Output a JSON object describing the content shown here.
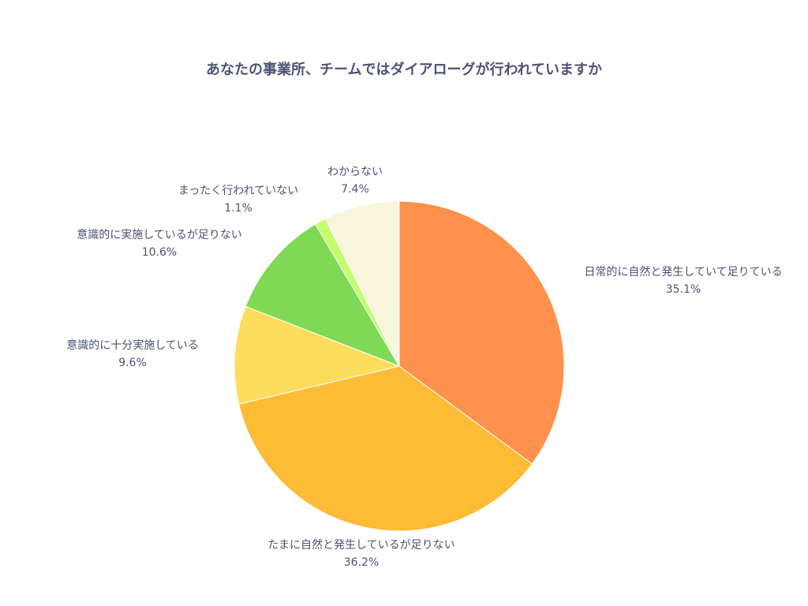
{
  "chart_data": {
    "type": "pie",
    "title": "あなたの事業所、チームではダイアローグが行われていますか",
    "start_angle_deg": 90,
    "direction": "clockwise",
    "slices": [
      {
        "label": "日常的に自然と発生していて足りている",
        "value": 35.1,
        "text": "35.1%",
        "color": "#fe914b"
      },
      {
        "label": "たまに自然と発生しているが足りない",
        "value": 36.2,
        "text": "36.2%",
        "color": "#fdbb36"
      },
      {
        "label": "意識的に十分実施している",
        "value": 9.6,
        "text": "9.6%",
        "color": "#fddd5b"
      },
      {
        "label": "意識的に実施しているが足りない",
        "value": 10.6,
        "text": "10.6%",
        "color": "#80d955"
      },
      {
        "label": "まったく行われていない",
        "value": 1.1,
        "text": "1.1%",
        "color": "#c2fe6d"
      },
      {
        "label": "わからない",
        "value": 7.4,
        "text": "7.4%",
        "color": "#f7f6dd"
      }
    ]
  }
}
